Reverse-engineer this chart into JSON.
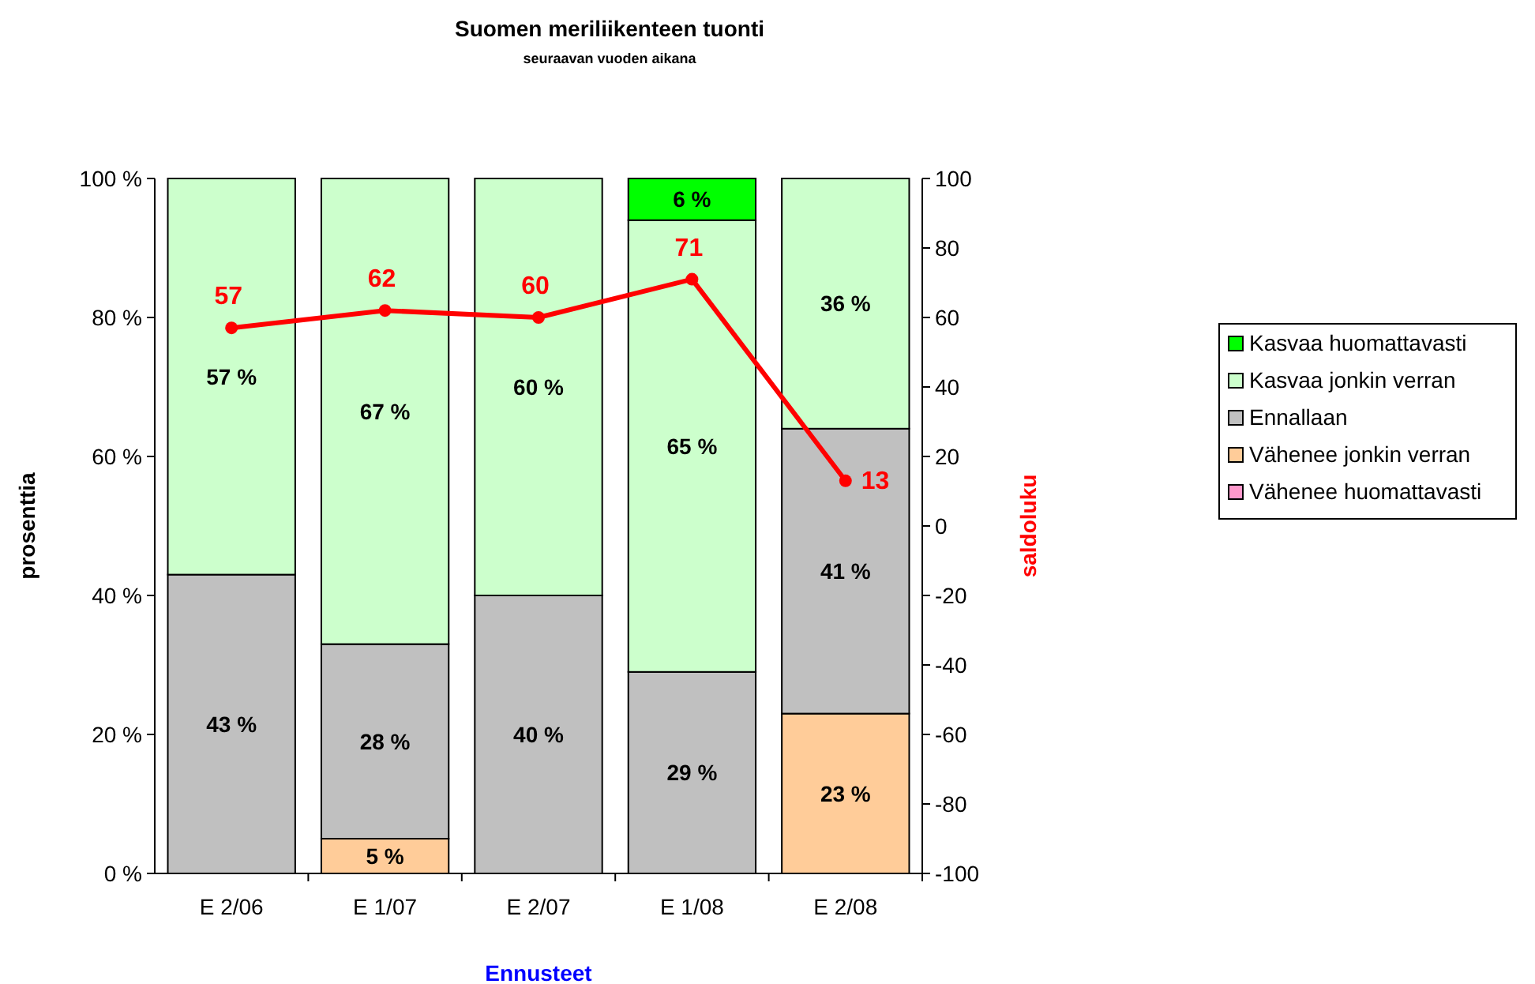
{
  "chart_data": {
    "type": "bar",
    "title": "Suomen meriliikenteen tuonti",
    "subtitle": "seuraavan vuoden aikana",
    "xlabel": "Ennusteet",
    "ylabel": "prosenttia",
    "y2label": "saldoluku",
    "categories": [
      "E 2/06",
      "E 1/07",
      "E 2/07",
      "E 1/08",
      "E 2/08"
    ],
    "stacked": true,
    "legend": "right",
    "grid": false,
    "ylim": [
      0,
      100
    ],
    "yticks": [
      {
        "value": 0,
        "label": "0 %"
      },
      {
        "value": 20,
        "label": "20 %"
      },
      {
        "value": 40,
        "label": "40 %"
      },
      {
        "value": 60,
        "label": "60 %"
      },
      {
        "value": 80,
        "label": "80 %"
      },
      {
        "value": 100,
        "label": "100 %"
      }
    ],
    "y2lim": [
      -100,
      100
    ],
    "y2ticks": [
      -100,
      -80,
      -60,
      -40,
      -20,
      0,
      20,
      40,
      60,
      80,
      100
    ],
    "series": [
      {
        "name": "Vähenee huomattavasti",
        "color": "#ff99cc",
        "values": [
          0,
          0,
          0,
          0,
          0
        ],
        "value_labels": [
          null,
          null,
          null,
          null,
          null
        ]
      },
      {
        "name": "Vähenee jonkin verran",
        "color": "#ffcc99",
        "values": [
          0,
          5,
          0,
          0,
          23
        ],
        "value_labels": [
          null,
          "5 %",
          null,
          null,
          "23 %"
        ]
      },
      {
        "name": "Ennallaan",
        "color": "#c0c0c0",
        "values": [
          43,
          28,
          40,
          29,
          41
        ],
        "value_labels": [
          "43 %",
          "28 %",
          "40 %",
          "29 %",
          "41 %"
        ]
      },
      {
        "name": "Kasvaa jonkin verran",
        "color": "#ccffcc",
        "values": [
          57,
          67,
          60,
          65,
          36
        ],
        "value_labels": [
          "57 %",
          "67 %",
          "60 %",
          "65 %",
          "36 %"
        ]
      },
      {
        "name": "Kasvaa huomattavasti",
        "color": "#00ff00",
        "values": [
          0,
          0,
          0,
          6,
          0
        ],
        "value_labels": [
          null,
          null,
          null,
          "6 %",
          null
        ]
      },
      {
        "type": "line",
        "axis": "y2",
        "color": "#ff0000",
        "marker": "circle",
        "values": [
          57,
          62,
          60,
          71,
          13
        ],
        "value_labels": [
          "57",
          "62",
          "60",
          "71",
          "13"
        ]
      }
    ]
  }
}
